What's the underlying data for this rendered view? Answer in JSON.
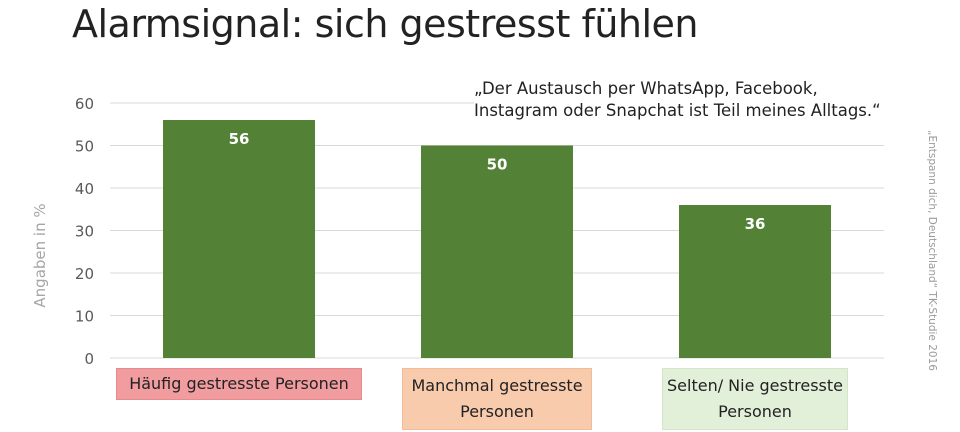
{
  "title": "Alarmsignal: sich gestresst fühlen",
  "quote": {
    "line1": "„Der Austausch per WhatsApp, Facebook,",
    "line2": "Instagram oder Snapchat ist Teil meines Alltags.“"
  },
  "source": "„Entspann dich, Deutschland“ TK-Studie 2016",
  "colors": {
    "bar": "#538135",
    "grid": "#d9d9d9",
    "axis_text": "#595959",
    "ylabel_text": "#a6a6a6",
    "category_backgrounds": [
      "#f19c9f",
      "#f8cbad",
      "#e2efd9"
    ],
    "category_borders": [
      "#e88a8d",
      "#f3bc99",
      "#d3e6c8"
    ]
  },
  "chart_data": {
    "type": "bar",
    "categories": [
      "Häufig gestresste Personen",
      "Manchmal gestresste Personen",
      "Selten/ Nie gestresste Personen"
    ],
    "category_lines": [
      [
        "Häufig gestresste Personen"
      ],
      [
        "Manchmal gestresste",
        "Personen"
      ],
      [
        "Selten/ Nie gestresste",
        "Personen"
      ]
    ],
    "values": [
      56,
      50,
      36
    ],
    "ylabel": "Angaben in %",
    "ylim": [
      0,
      60
    ],
    "yticks": [
      0,
      10,
      20,
      30,
      40,
      50,
      60
    ],
    "grid": true,
    "data_labels": true
  }
}
